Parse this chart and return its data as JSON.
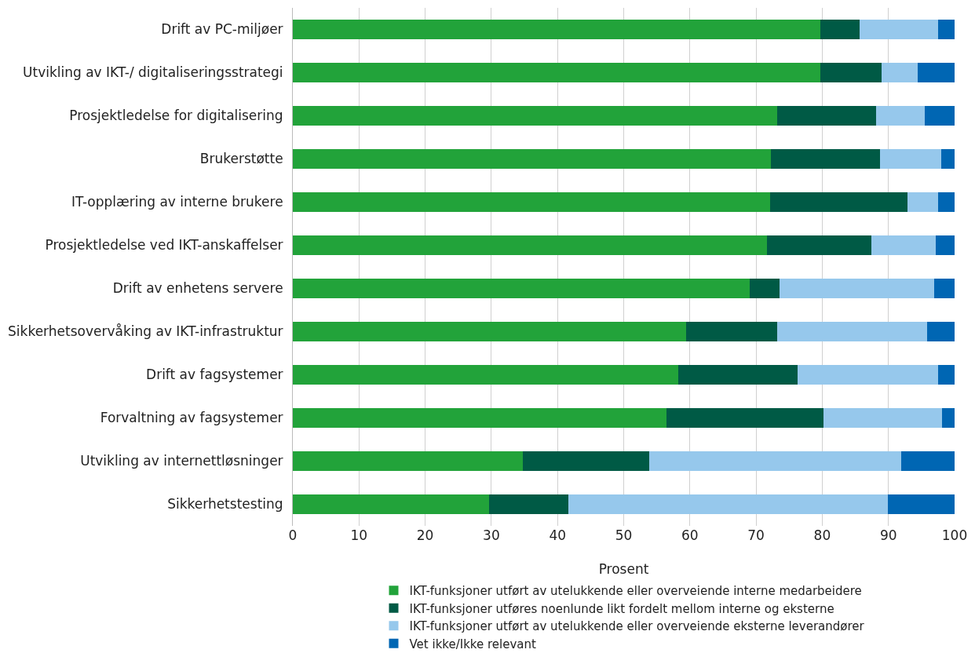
{
  "chart_data": {
    "type": "bar",
    "orientation": "horizontal",
    "stacked": true,
    "categories": [
      "Drift av PC-miljøer",
      "Utvikling av IKT-/ digitaliseringsstrategi",
      "Prosjektledelse for digitalisering",
      "Brukerstøtte",
      "IT-opplæring av interne brukere",
      "Prosjektledelse ved IKT-anskaffelser",
      "Drift av enhetens servere",
      "Sikkerhetsovervåking av IKT-infrastruktur",
      "Drift av fagsystemer",
      "Forvaltning av fagsystemer",
      "Utvikling av internettløsninger",
      "Sikkerhetstesting"
    ],
    "series": [
      {
        "name": "IKT-funksjoner utført av utelukkende eller overveiende interne medarbeidere",
        "color": "#22a33a",
        "values": [
          79.7,
          79.7,
          73.2,
          72.3,
          72.1,
          71.7,
          69.0,
          59.4,
          58.2,
          56.5,
          34.7,
          29.7
        ]
      },
      {
        "name": "IKT-funksjoner utføres noenlunde likt fordelt mellom interne og eksterne",
        "color": "#005a45",
        "values": [
          5.9,
          9.3,
          14.9,
          16.4,
          20.8,
          15.7,
          4.5,
          13.8,
          18.1,
          23.7,
          19.1,
          11.9
        ]
      },
      {
        "name": "IKT-funksjoner utført av utelukkende eller overveiende eksterne leverandører",
        "color": "#96c8ec",
        "values": [
          11.9,
          5.4,
          7.4,
          9.3,
          4.6,
          9.8,
          23.4,
          22.6,
          21.2,
          17.9,
          38.1,
          48.3
        ]
      },
      {
        "name": "Vet ikke/Ikke relevant",
        "color": "#0066b3",
        "values": [
          2.5,
          5.6,
          4.5,
          2.0,
          2.5,
          2.8,
          3.1,
          4.2,
          2.5,
          1.9,
          8.1,
          10.1
        ]
      }
    ],
    "xlabel": "Prosent",
    "xlim": [
      0,
      100
    ],
    "xticks": [
      0,
      10,
      20,
      30,
      40,
      50,
      60,
      70,
      80,
      90,
      100
    ],
    "grid": "x",
    "legend": "bottom"
  }
}
